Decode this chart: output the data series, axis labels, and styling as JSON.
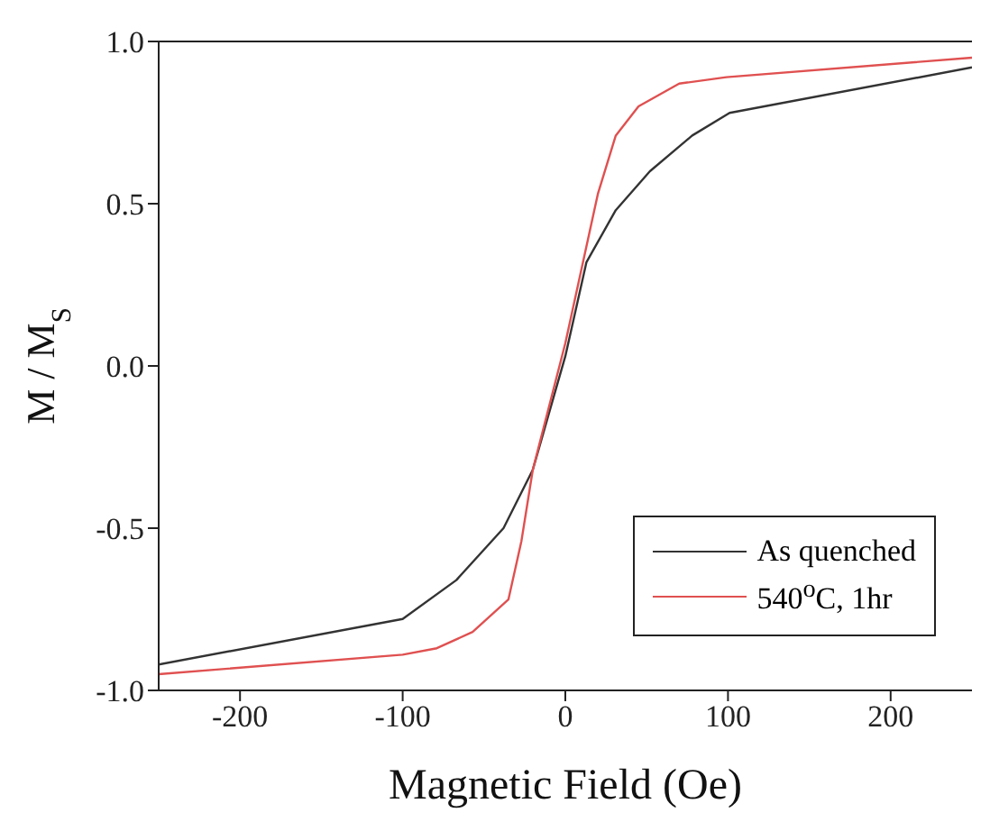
{
  "chart_data": {
    "type": "line",
    "xlabel": "Magnetic Field (Oe)",
    "ylabel": "M / M$_{S}$",
    "xlim": [
      -250,
      250
    ],
    "xticks": [
      -200,
      -100,
      0,
      100,
      200
    ],
    "ylim": [
      -1,
      1
    ],
    "yticks": [
      {
        "value": -1,
        "label": "-1.0"
      },
      {
        "value": -0.5,
        "label": "-0.5"
      },
      {
        "value": 0,
        "label": "0.0"
      },
      {
        "value": 0.5,
        "label": "0.5"
      },
      {
        "value": 1,
        "label": "1.0"
      }
    ],
    "grid": false,
    "legend": "bottom right",
    "marker": "none",
    "line_style": "solid",
    "series": [
      {
        "name": "As quenched",
        "color": "#333333",
        "x": [
          -250,
          -100,
          -67,
          -38,
          -20,
          0,
          13,
          31,
          52,
          78,
          101,
          250
        ],
        "values": [
          -0.92,
          -0.78,
          -0.66,
          -0.5,
          -0.32,
          0.03,
          0.32,
          0.48,
          0.6,
          0.71,
          0.78,
          0.92
        ]
      },
      {
        "name": "540$^{o}$C, 1hr",
        "color": "#e05050",
        "x": [
          -250,
          -100,
          -79,
          -57,
          -35,
          -27,
          -20,
          0,
          20,
          31,
          45,
          70,
          99,
          250
        ],
        "values": [
          -0.95,
          -0.89,
          -0.87,
          -0.82,
          -0.72,
          -0.54,
          -0.32,
          0.07,
          0.53,
          0.71,
          0.8,
          0.87,
          0.89,
          0.95
        ]
      }
    ]
  }
}
